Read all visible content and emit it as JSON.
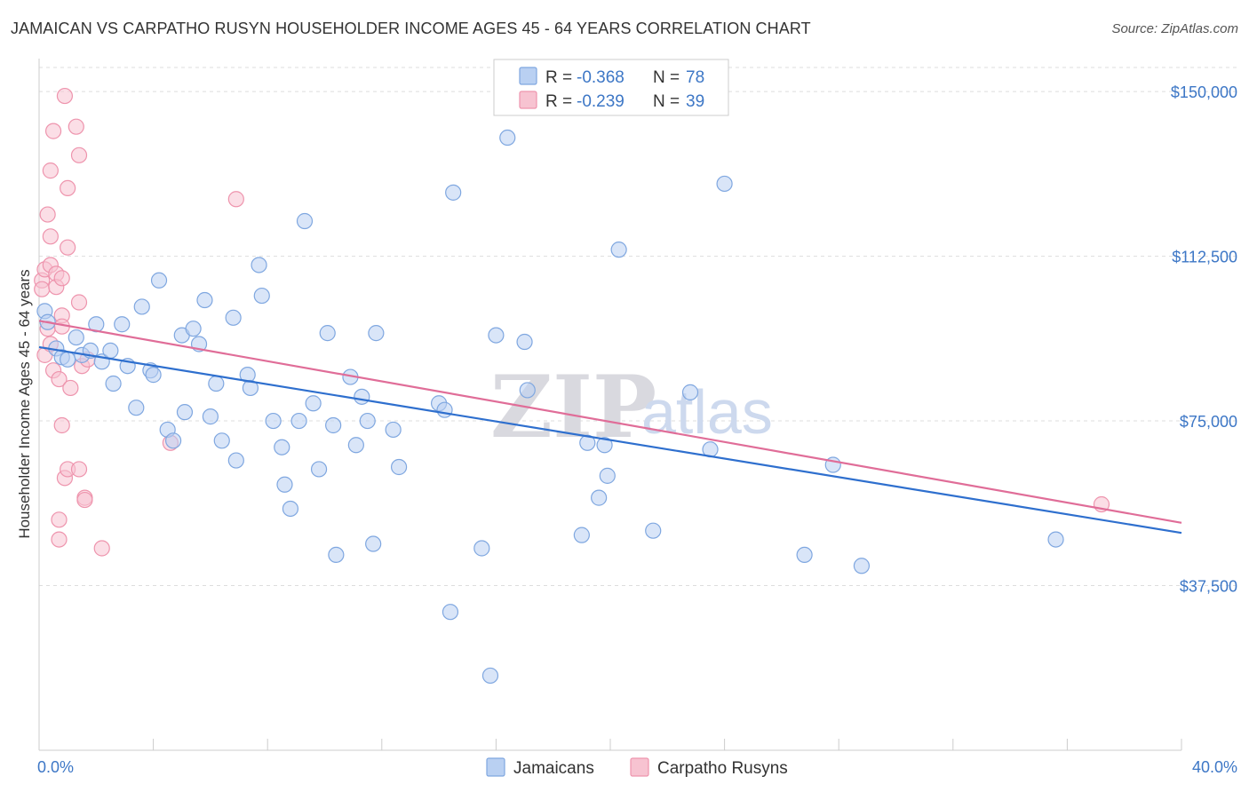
{
  "title": "JAMAICAN VS CARPATHO RUSYN HOUSEHOLDER INCOME AGES 45 - 64 YEARS CORRELATION CHART",
  "source": "Source: ZipAtlas.com",
  "watermark": {
    "zip": "ZIP",
    "atlas": "atlas"
  },
  "colors": {
    "blue_fill": "#b9d0f2",
    "blue_stroke": "#7fa7e0",
    "blue_line": "#2e6fce",
    "pink_fill": "#f7c3d1",
    "pink_stroke": "#ee94ad",
    "pink_line": "#e06d98",
    "tick_text": "#3d77c6",
    "grid": "#dddddd"
  },
  "legend": {
    "rows": [
      {
        "r_label": "R = ",
        "r_value": "-0.368",
        "n_label": "N = ",
        "n_value": "78"
      },
      {
        "r_label": "R = ",
        "r_value": "-0.239",
        "n_label": "N = ",
        "n_value": "39"
      }
    ]
  },
  "chart_data": {
    "type": "scatter",
    "title": "JAMAICAN VS CARPATHO RUSYN HOUSEHOLDER INCOME AGES 45 - 64 YEARS CORRELATION CHART",
    "xlabel": "",
    "ylabel": "Householder Income Ages 45 - 64 years",
    "xlim": [
      0,
      40
    ],
    "ylim": [
      0,
      157500
    ],
    "x_tick_labels": [
      "0.0%",
      "40.0%"
    ],
    "y_ticks": [
      37500,
      75000,
      112500,
      150000
    ],
    "y_tick_labels": [
      "$37,500",
      "$75,000",
      "$112,500",
      "$150,000"
    ],
    "grid": "horizontal dashed",
    "legend_position": "top-center",
    "series": [
      {
        "name": "Jamaicans",
        "r": -0.368,
        "n": 78,
        "trend": {
          "x": [
            0,
            40
          ],
          "y": [
            91800,
            49500
          ]
        },
        "points": [
          [
            0.2,
            100000
          ],
          [
            0.3,
            97500
          ],
          [
            0.6,
            91500
          ],
          [
            0.8,
            89500
          ],
          [
            1.0,
            89000
          ],
          [
            1.3,
            94000
          ],
          [
            1.5,
            90000
          ],
          [
            1.8,
            91000
          ],
          [
            2.0,
            97000
          ],
          [
            2.2,
            88500
          ],
          [
            2.5,
            91000
          ],
          [
            2.6,
            83500
          ],
          [
            2.9,
            97000
          ],
          [
            3.1,
            87500
          ],
          [
            3.4,
            78000
          ],
          [
            3.6,
            101000
          ],
          [
            3.9,
            86500
          ],
          [
            4.0,
            85500
          ],
          [
            4.2,
            107000
          ],
          [
            4.5,
            73000
          ],
          [
            4.7,
            70500
          ],
          [
            5.0,
            94500
          ],
          [
            5.1,
            77000
          ],
          [
            5.4,
            96000
          ],
          [
            5.6,
            92500
          ],
          [
            5.8,
            102500
          ],
          [
            6.0,
            76000
          ],
          [
            6.2,
            83500
          ],
          [
            6.4,
            70500
          ],
          [
            6.8,
            98500
          ],
          [
            6.9,
            66000
          ],
          [
            7.3,
            85500
          ],
          [
            7.4,
            82500
          ],
          [
            7.7,
            110500
          ],
          [
            7.8,
            103500
          ],
          [
            8.2,
            75000
          ],
          [
            8.5,
            69000
          ],
          [
            8.6,
            60500
          ],
          [
            8.8,
            55000
          ],
          [
            9.1,
            75000
          ],
          [
            9.3,
            120500
          ],
          [
            9.6,
            79000
          ],
          [
            9.8,
            64000
          ],
          [
            10.1,
            95000
          ],
          [
            10.3,
            74000
          ],
          [
            10.4,
            44500
          ],
          [
            10.9,
            85000
          ],
          [
            11.1,
            69500
          ],
          [
            11.3,
            80500
          ],
          [
            11.5,
            75000
          ],
          [
            11.7,
            47000
          ],
          [
            11.8,
            95000
          ],
          [
            12.4,
            73000
          ],
          [
            12.6,
            64500
          ],
          [
            14.0,
            79000
          ],
          [
            14.2,
            77500
          ],
          [
            14.4,
            31500
          ],
          [
            14.5,
            127000
          ],
          [
            15.5,
            46000
          ],
          [
            15.8,
            17000
          ],
          [
            16.0,
            94500
          ],
          [
            16.4,
            139500
          ],
          [
            17.0,
            93000
          ],
          [
            17.1,
            82000
          ],
          [
            19.0,
            49000
          ],
          [
            19.2,
            70000
          ],
          [
            19.6,
            57500
          ],
          [
            19.8,
            69500
          ],
          [
            19.9,
            62500
          ],
          [
            20.3,
            114000
          ],
          [
            21.5,
            50000
          ],
          [
            22.8,
            81500
          ],
          [
            23.5,
            68500
          ],
          [
            24.0,
            129000
          ],
          [
            26.8,
            44500
          ],
          [
            27.8,
            65000
          ],
          [
            28.8,
            42000
          ],
          [
            35.6,
            48000
          ]
        ]
      },
      {
        "name": "Carpatho Rusyns",
        "r": -0.239,
        "n": 39,
        "trend": {
          "x": [
            0,
            40
          ],
          "y": [
            97800,
            51800
          ]
        },
        "points": [
          [
            0.1,
            107000
          ],
          [
            0.1,
            105000
          ],
          [
            0.2,
            109500
          ],
          [
            0.2,
            90000
          ],
          [
            0.3,
            122000
          ],
          [
            0.3,
            96000
          ],
          [
            0.4,
            117000
          ],
          [
            0.4,
            110500
          ],
          [
            0.4,
            132000
          ],
          [
            0.4,
            92500
          ],
          [
            0.5,
            86500
          ],
          [
            0.5,
            141000
          ],
          [
            0.6,
            108500
          ],
          [
            0.6,
            105500
          ],
          [
            0.7,
            84500
          ],
          [
            0.7,
            48000
          ],
          [
            0.7,
            52500
          ],
          [
            0.8,
            107500
          ],
          [
            0.8,
            99000
          ],
          [
            0.8,
            96500
          ],
          [
            0.8,
            74000
          ],
          [
            0.9,
            62000
          ],
          [
            0.9,
            149000
          ],
          [
            1.0,
            64000
          ],
          [
            1.0,
            128000
          ],
          [
            1.0,
            114500
          ],
          [
            1.1,
            82500
          ],
          [
            1.3,
            142000
          ],
          [
            1.4,
            64000
          ],
          [
            1.4,
            102000
          ],
          [
            1.4,
            135500
          ],
          [
            1.5,
            87500
          ],
          [
            1.6,
            57500
          ],
          [
            1.6,
            57000
          ],
          [
            1.7,
            89000
          ],
          [
            2.2,
            46000
          ],
          [
            4.6,
            70000
          ],
          [
            6.9,
            125500
          ],
          [
            37.2,
            56000
          ]
        ]
      }
    ]
  }
}
